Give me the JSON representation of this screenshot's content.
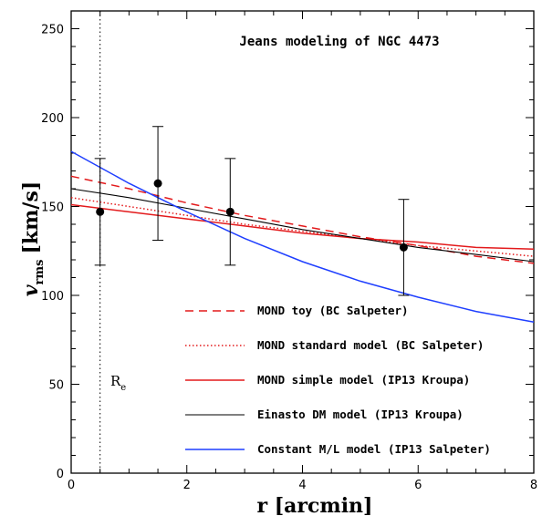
{
  "chart_data": {
    "type": "line",
    "title": "Jeans modeling of NGC 4473",
    "xlabel": "r [arcmin]",
    "ylabel": "v",
    "ylabel_sub": "rms",
    "ylabel_unit": "[km/s]",
    "xlim": [
      0,
      8
    ],
    "ylim": [
      0,
      260
    ],
    "xticks": [
      0,
      2,
      4,
      6,
      8
    ],
    "yticks": [
      0,
      50,
      100,
      150,
      200,
      250
    ],
    "grid": false,
    "legend_position": "lower-right",
    "effective_radius": {
      "x": 0.5,
      "label": "R",
      "label_sub": "e"
    },
    "observations": [
      {
        "x": 0.5,
        "y": 147,
        "err": 30
      },
      {
        "x": 1.5,
        "y": 163,
        "err": 32
      },
      {
        "x": 2.75,
        "y": 147,
        "err": 30
      },
      {
        "x": 5.75,
        "y": 127,
        "err": 27
      }
    ],
    "series": [
      {
        "name": "MOND toy (BC Salpeter)",
        "color": "#e31a1c",
        "dash": "dashed",
        "x": [
          0,
          1,
          2,
          3,
          4,
          5,
          6,
          7,
          8
        ],
        "y": [
          167,
          160,
          152,
          145,
          139,
          133,
          128,
          122,
          118
        ]
      },
      {
        "name": "MOND standard model (BC Salpeter)",
        "color": "#e31a1c",
        "dash": "dotted",
        "x": [
          0,
          1,
          2,
          3,
          4,
          5,
          6,
          7,
          8
        ],
        "y": [
          155,
          150,
          145,
          140,
          136,
          132,
          128,
          125,
          122
        ]
      },
      {
        "name": "MOND simple model (IP13 Kroupa)",
        "color": "#e31a1c",
        "dash": "solid",
        "x": [
          0,
          1,
          2,
          3,
          4,
          5,
          6,
          7,
          8
        ],
        "y": [
          151,
          147,
          143,
          139,
          135,
          132,
          130,
          127,
          126
        ]
      },
      {
        "name": "Einasto DM model (IP13 Kroupa)",
        "color": "#000000",
        "dash": "solid",
        "x": [
          0,
          1,
          2,
          3,
          4,
          5,
          6,
          7,
          8
        ],
        "y": [
          160,
          155,
          149,
          143,
          137,
          132,
          127,
          123,
          119
        ]
      },
      {
        "name": "Constant M/L model (IP13 Salpeter)",
        "color": "#1f3fff",
        "dash": "solid",
        "x": [
          0,
          1,
          2,
          3,
          4,
          5,
          6,
          7,
          8
        ],
        "y": [
          181,
          163,
          147,
          132,
          119,
          108,
          99,
          91,
          85
        ]
      }
    ]
  }
}
